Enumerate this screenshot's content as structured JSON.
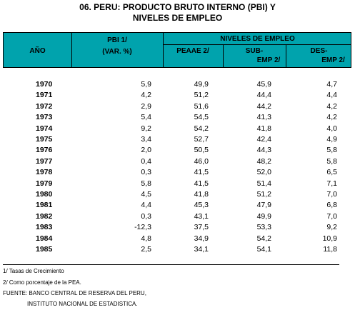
{
  "header": {
    "title": [
      "06. PERU: PRODUCTO BRUTO INTERNO (PBI) Y",
      "NIVELES DE EMPLEO"
    ]
  },
  "table": {
    "columns": {
      "year": "AÑO",
      "pbi": [
        "PBI 1/",
        "(VAR. %)"
      ],
      "group": "NIVELES DE EMPLEO",
      "peaae": "PEAAE 2/",
      "sub": [
        "SUB-",
        "EMP 2/"
      ],
      "des": [
        "DES-",
        "EMP 2/"
      ]
    },
    "rows": [
      [
        "1970",
        "5,9",
        "49,9",
        "45,9",
        "4,7"
      ],
      [
        "1971",
        "4,2",
        "51,2",
        "44,4",
        "4,4"
      ],
      [
        "1972",
        "2,9",
        "51,6",
        "44,2",
        "4,2"
      ],
      [
        "1973",
        "5,4",
        "54,5",
        "41,3",
        "4,2"
      ],
      [
        "1974",
        "9,2",
        "54,2",
        "41,8",
        "4,0"
      ],
      [
        "1975",
        "3,4",
        "52,7",
        "42,4",
        "4,9"
      ],
      [
        "1976",
        "2,0",
        "50,5",
        "44,3",
        "5,8"
      ],
      [
        "1977",
        "0,4",
        "46,0",
        "48,2",
        "5,8"
      ],
      [
        "1978",
        "0,3",
        "41,5",
        "52,0",
        "6,5"
      ],
      [
        "1979",
        "5,8",
        "41,5",
        "51,4",
        "7,1"
      ],
      [
        "1980",
        "4,5",
        "41,8",
        "51,2",
        "7,0"
      ],
      [
        "1981",
        "4,4",
        "45,3",
        "47,9",
        "6,8"
      ],
      [
        "1982",
        "0,3",
        "43,1",
        "49,9",
        "7,0"
      ],
      [
        "1983",
        "-12,3",
        "37,5",
        "53,3",
        "9,2"
      ],
      [
        "1984",
        "4,8",
        "34,9",
        "54,2",
        "10,9"
      ],
      [
        "1985",
        "2,5",
        "34,1",
        "54,1",
        "11,8"
      ]
    ]
  },
  "footnotes": [
    "1/ Tasas de Crecimiento",
    "2/ Como porcentaje de la PEA.",
    "FUENTE: BANCO CENTRAL DE RESERVA DEL PERU,",
    "INSTITUTO NACIONAL DE ESTADISTICA."
  ]
}
